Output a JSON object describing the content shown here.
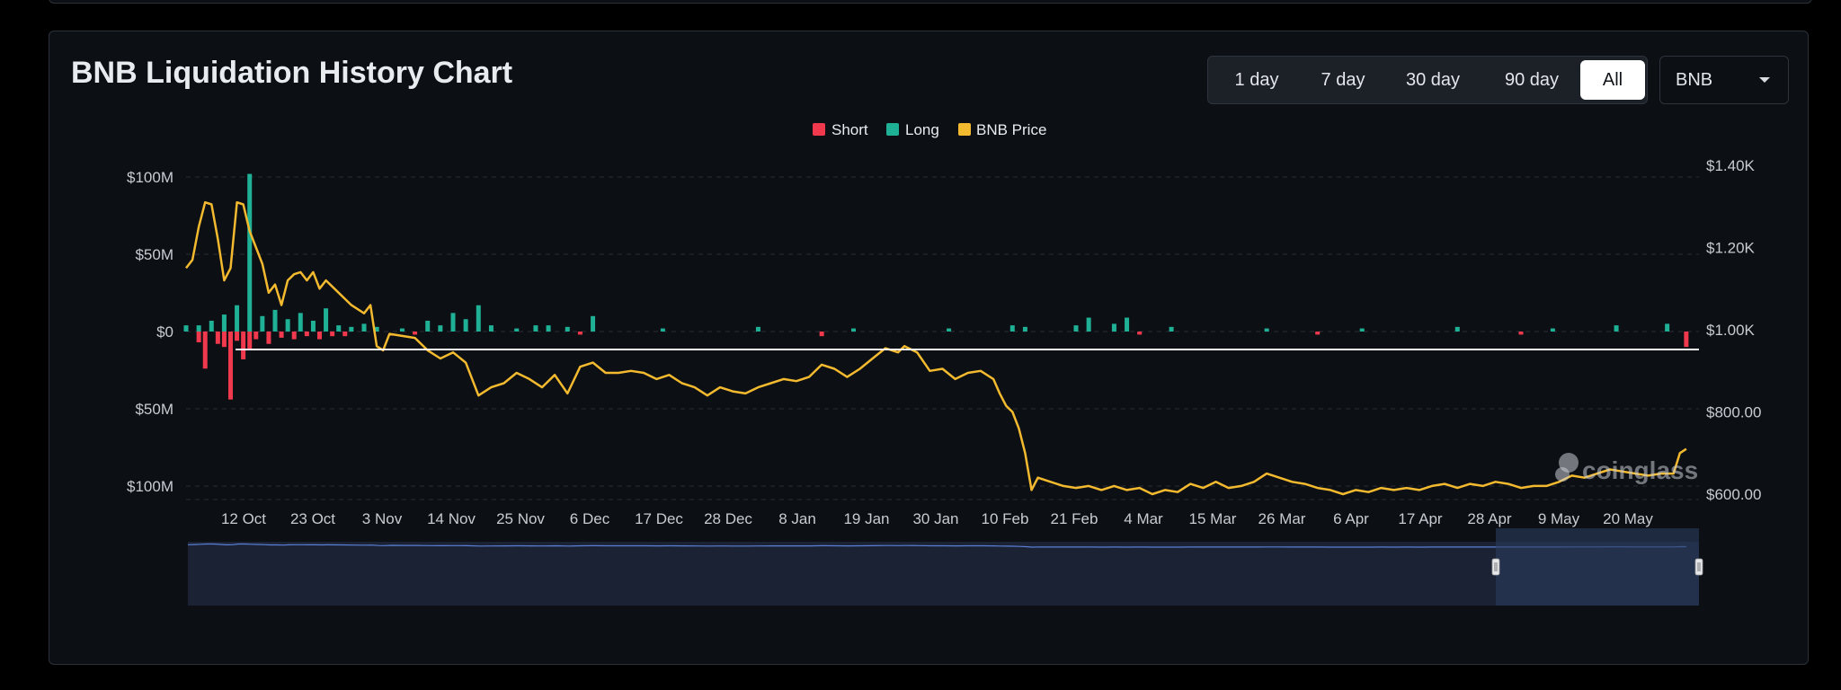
{
  "title": "BNB Liquidation History Chart",
  "range_buttons": [
    {
      "label": "1 day",
      "active": false
    },
    {
      "label": "7 day",
      "active": false
    },
    {
      "label": "30 day",
      "active": false
    },
    {
      "label": "90 day",
      "active": false
    },
    {
      "label": "All",
      "active": true
    }
  ],
  "coin_select": {
    "value": "BNB"
  },
  "watermark": "coinglass",
  "colors": {
    "short": "#f0394d",
    "long": "#1fb196",
    "price": "#f3ba2f",
    "navigator": "#5b7fd6"
  },
  "chart_data": {
    "type": "bar",
    "legend": [
      {
        "name": "Short",
        "color": "#f0394d"
      },
      {
        "name": "Long",
        "color": "#1fb196"
      },
      {
        "name": "BNB Price",
        "color": "#f3ba2f"
      }
    ],
    "legend_position": "top-center",
    "grid": true,
    "x_tick_labels": [
      "12 Oct",
      "23 Oct",
      "3 Nov",
      "14 Nov",
      "25 Nov",
      "6 Dec",
      "17 Dec",
      "28 Dec",
      "8 Jan",
      "19 Jan",
      "30 Jan",
      "10 Feb",
      "21 Feb",
      "4 Mar",
      "15 Mar",
      "26 Mar",
      "6 Apr",
      "17 Apr",
      "28 Apr",
      "9 May",
      "20 May"
    ],
    "y_left": {
      "ticks": [
        100,
        50,
        0,
        -50,
        -100
      ],
      "labels": [
        "$100M",
        "$50M",
        "$0",
        "$50M",
        "$100M"
      ],
      "range": [
        -110,
        110
      ],
      "unit": "$M"
    },
    "y_right": {
      "ticks": [
        1400,
        1200,
        1000,
        800,
        600
      ],
      "labels": [
        "$1.40K",
        "$1.20K",
        "$1.00K",
        "$800.00",
        "$600.00"
      ],
      "range": [
        570,
        1430
      ]
    },
    "x_range_days": [
      0,
      238
    ],
    "long_series": [
      {
        "day": 0,
        "value": 4
      },
      {
        "day": 2,
        "value": 4
      },
      {
        "day": 4,
        "value": 7
      },
      {
        "day": 6,
        "value": 11
      },
      {
        "day": 8,
        "value": 17
      },
      {
        "day": 10,
        "value": 102
      },
      {
        "day": 12,
        "value": 10
      },
      {
        "day": 14,
        "value": 14
      },
      {
        "day": 16,
        "value": 8
      },
      {
        "day": 18,
        "value": 12
      },
      {
        "day": 20,
        "value": 7
      },
      {
        "day": 22,
        "value": 15
      },
      {
        "day": 24,
        "value": 4
      },
      {
        "day": 26,
        "value": 3
      },
      {
        "day": 28,
        "value": 5
      },
      {
        "day": 30,
        "value": 3
      },
      {
        "day": 34,
        "value": 2
      },
      {
        "day": 38,
        "value": 7
      },
      {
        "day": 40,
        "value": 4
      },
      {
        "day": 42,
        "value": 12
      },
      {
        "day": 44,
        "value": 8
      },
      {
        "day": 46,
        "value": 17
      },
      {
        "day": 48,
        "value": 4
      },
      {
        "day": 52,
        "value": 2
      },
      {
        "day": 55,
        "value": 4
      },
      {
        "day": 57,
        "value": 4
      },
      {
        "day": 60,
        "value": 3
      },
      {
        "day": 64,
        "value": 10
      },
      {
        "day": 75,
        "value": 2
      },
      {
        "day": 90,
        "value": 3
      },
      {
        "day": 105,
        "value": 2
      },
      {
        "day": 120,
        "value": 2
      },
      {
        "day": 130,
        "value": 4
      },
      {
        "day": 132,
        "value": 3
      },
      {
        "day": 140,
        "value": 4
      },
      {
        "day": 142,
        "value": 9
      },
      {
        "day": 146,
        "value": 5
      },
      {
        "day": 148,
        "value": 9
      },
      {
        "day": 155,
        "value": 3
      },
      {
        "day": 170,
        "value": 2
      },
      {
        "day": 185,
        "value": 2
      },
      {
        "day": 200,
        "value": 3
      },
      {
        "day": 215,
        "value": 2
      },
      {
        "day": 225,
        "value": 4
      },
      {
        "day": 233,
        "value": 5
      }
    ],
    "short_series": [
      {
        "day": 2,
        "value": -7
      },
      {
        "day": 3,
        "value": -24
      },
      {
        "day": 5,
        "value": -8
      },
      {
        "day": 6,
        "value": -10
      },
      {
        "day": 7,
        "value": -44
      },
      {
        "day": 8,
        "value": -6
      },
      {
        "day": 9,
        "value": -18
      },
      {
        "day": 10,
        "value": -11
      },
      {
        "day": 11,
        "value": -5
      },
      {
        "day": 13,
        "value": -8
      },
      {
        "day": 15,
        "value": -4
      },
      {
        "day": 17,
        "value": -5
      },
      {
        "day": 19,
        "value": -3
      },
      {
        "day": 21,
        "value": -5
      },
      {
        "day": 23,
        "value": -3
      },
      {
        "day": 25,
        "value": -3
      },
      {
        "day": 36,
        "value": -2
      },
      {
        "day": 62,
        "value": -2
      },
      {
        "day": 100,
        "value": -3
      },
      {
        "day": 150,
        "value": -2
      },
      {
        "day": 178,
        "value": -2
      },
      {
        "day": 210,
        "value": -2
      },
      {
        "day": 236,
        "value": -10
      }
    ],
    "price_series": [
      {
        "day": 0,
        "value": 1150
      },
      {
        "day": 1,
        "value": 1170
      },
      {
        "day": 2,
        "value": 1250
      },
      {
        "day": 3,
        "value": 1310
      },
      {
        "day": 4,
        "value": 1305
      },
      {
        "day": 5,
        "value": 1220
      },
      {
        "day": 6,
        "value": 1120
      },
      {
        "day": 7,
        "value": 1150
      },
      {
        "day": 8,
        "value": 1310
      },
      {
        "day": 9,
        "value": 1305
      },
      {
        "day": 10,
        "value": 1240
      },
      {
        "day": 11,
        "value": 1200
      },
      {
        "day": 12,
        "value": 1160
      },
      {
        "day": 13,
        "value": 1090
      },
      {
        "day": 14,
        "value": 1110
      },
      {
        "day": 15,
        "value": 1060
      },
      {
        "day": 16,
        "value": 1120
      },
      {
        "day": 17,
        "value": 1135
      },
      {
        "day": 18,
        "value": 1140
      },
      {
        "day": 19,
        "value": 1120
      },
      {
        "day": 20,
        "value": 1140
      },
      {
        "day": 21,
        "value": 1100
      },
      {
        "day": 22,
        "value": 1120
      },
      {
        "day": 24,
        "value": 1090
      },
      {
        "day": 26,
        "value": 1060
      },
      {
        "day": 28,
        "value": 1040
      },
      {
        "day": 29,
        "value": 1060
      },
      {
        "day": 30,
        "value": 960
      },
      {
        "day": 31,
        "value": 950
      },
      {
        "day": 32,
        "value": 990
      },
      {
        "day": 34,
        "value": 985
      },
      {
        "day": 36,
        "value": 980
      },
      {
        "day": 38,
        "value": 950
      },
      {
        "day": 40,
        "value": 930
      },
      {
        "day": 42,
        "value": 945
      },
      {
        "day": 44,
        "value": 920
      },
      {
        "day": 46,
        "value": 840
      },
      {
        "day": 48,
        "value": 860
      },
      {
        "day": 50,
        "value": 870
      },
      {
        "day": 52,
        "value": 895
      },
      {
        "day": 54,
        "value": 880
      },
      {
        "day": 56,
        "value": 860
      },
      {
        "day": 58,
        "value": 890
      },
      {
        "day": 60,
        "value": 845
      },
      {
        "day": 62,
        "value": 910
      },
      {
        "day": 64,
        "value": 920
      },
      {
        "day": 66,
        "value": 895
      },
      {
        "day": 68,
        "value": 895
      },
      {
        "day": 70,
        "value": 900
      },
      {
        "day": 72,
        "value": 895
      },
      {
        "day": 74,
        "value": 880
      },
      {
        "day": 76,
        "value": 890
      },
      {
        "day": 78,
        "value": 870
      },
      {
        "day": 80,
        "value": 860
      },
      {
        "day": 82,
        "value": 840
      },
      {
        "day": 84,
        "value": 860
      },
      {
        "day": 86,
        "value": 850
      },
      {
        "day": 88,
        "value": 845
      },
      {
        "day": 90,
        "value": 860
      },
      {
        "day": 92,
        "value": 870
      },
      {
        "day": 94,
        "value": 880
      },
      {
        "day": 96,
        "value": 875
      },
      {
        "day": 98,
        "value": 885
      },
      {
        "day": 100,
        "value": 915
      },
      {
        "day": 102,
        "value": 905
      },
      {
        "day": 104,
        "value": 885
      },
      {
        "day": 106,
        "value": 905
      },
      {
        "day": 108,
        "value": 930
      },
      {
        "day": 110,
        "value": 955
      },
      {
        "day": 112,
        "value": 945
      },
      {
        "day": 113,
        "value": 960
      },
      {
        "day": 115,
        "value": 945
      },
      {
        "day": 117,
        "value": 900
      },
      {
        "day": 119,
        "value": 905
      },
      {
        "day": 121,
        "value": 880
      },
      {
        "day": 123,
        "value": 895
      },
      {
        "day": 125,
        "value": 900
      },
      {
        "day": 127,
        "value": 880
      },
      {
        "day": 128,
        "value": 845
      },
      {
        "day": 129,
        "value": 815
      },
      {
        "day": 130,
        "value": 800
      },
      {
        "day": 131,
        "value": 760
      },
      {
        "day": 132,
        "value": 700
      },
      {
        "day": 133,
        "value": 610
      },
      {
        "day": 134,
        "value": 640
      },
      {
        "day": 136,
        "value": 630
      },
      {
        "day": 138,
        "value": 620
      },
      {
        "day": 140,
        "value": 615
      },
      {
        "day": 142,
        "value": 620
      },
      {
        "day": 144,
        "value": 610
      },
      {
        "day": 146,
        "value": 620
      },
      {
        "day": 148,
        "value": 610
      },
      {
        "day": 150,
        "value": 615
      },
      {
        "day": 152,
        "value": 600
      },
      {
        "day": 154,
        "value": 610
      },
      {
        "day": 156,
        "value": 605
      },
      {
        "day": 158,
        "value": 625
      },
      {
        "day": 160,
        "value": 615
      },
      {
        "day": 162,
        "value": 630
      },
      {
        "day": 164,
        "value": 615
      },
      {
        "day": 166,
        "value": 620
      },
      {
        "day": 168,
        "value": 630
      },
      {
        "day": 170,
        "value": 650
      },
      {
        "day": 172,
        "value": 640
      },
      {
        "day": 174,
        "value": 630
      },
      {
        "day": 176,
        "value": 625
      },
      {
        "day": 178,
        "value": 615
      },
      {
        "day": 180,
        "value": 610
      },
      {
        "day": 182,
        "value": 600
      },
      {
        "day": 184,
        "value": 610
      },
      {
        "day": 186,
        "value": 605
      },
      {
        "day": 188,
        "value": 615
      },
      {
        "day": 190,
        "value": 610
      },
      {
        "day": 192,
        "value": 615
      },
      {
        "day": 194,
        "value": 610
      },
      {
        "day": 196,
        "value": 620
      },
      {
        "day": 198,
        "value": 625
      },
      {
        "day": 200,
        "value": 615
      },
      {
        "day": 202,
        "value": 625
      },
      {
        "day": 204,
        "value": 620
      },
      {
        "day": 206,
        "value": 630
      },
      {
        "day": 208,
        "value": 625
      },
      {
        "day": 210,
        "value": 615
      },
      {
        "day": 212,
        "value": 620
      },
      {
        "day": 214,
        "value": 620
      },
      {
        "day": 216,
        "value": 630
      },
      {
        "day": 218,
        "value": 645
      },
      {
        "day": 220,
        "value": 640
      },
      {
        "day": 222,
        "value": 650
      },
      {
        "day": 224,
        "value": 660
      },
      {
        "day": 226,
        "value": 655
      },
      {
        "day": 228,
        "value": 650
      },
      {
        "day": 230,
        "value": 645
      },
      {
        "day": 232,
        "value": 650
      },
      {
        "day": 234,
        "value": 650
      },
      {
        "day": 235,
        "value": 700
      },
      {
        "day": 236,
        "value": 710
      }
    ],
    "navigator_selection": {
      "start_day": 206,
      "end_day": 238
    }
  }
}
